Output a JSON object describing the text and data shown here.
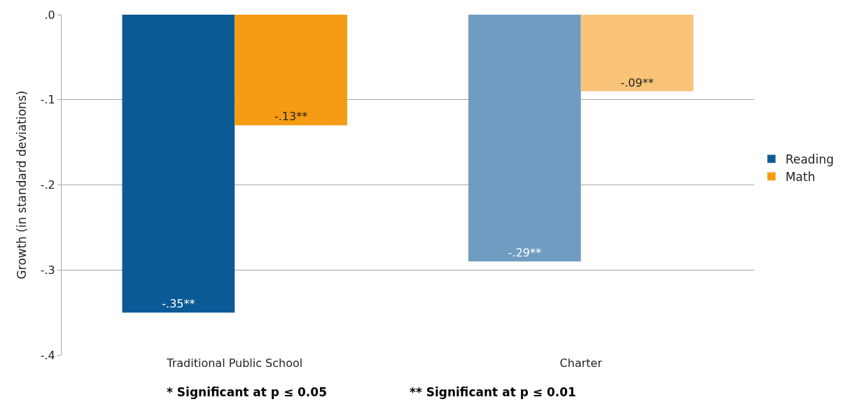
{
  "chart_data": {
    "type": "bar",
    "ylabel": "Growth (in standard deviations)",
    "categories": [
      "Traditional Public School",
      "Charter"
    ],
    "series": [
      {
        "name": "Reading",
        "color": "#0b5a96",
        "colors": [
          "#0b5a96",
          "#6f9cc0"
        ],
        "values": [
          -0.35,
          -0.29
        ],
        "value_labels": [
          "-.35**",
          "-.29**"
        ]
      },
      {
        "name": "Math",
        "color": "#f59c12",
        "colors": [
          "#f59c12",
          "#f9c478"
        ],
        "values": [
          -0.13,
          -0.09
        ],
        "value_labels": [
          "-.13**",
          "-.09**"
        ]
      }
    ],
    "ylim": [
      -0.4,
      0
    ],
    "yticks": [
      {
        "value": 0,
        "label": ".0"
      },
      {
        "value": -0.1,
        "label": "-.1"
      },
      {
        "value": -0.2,
        "label": "-.2"
      },
      {
        "value": -0.3,
        "label": "-.3"
      },
      {
        "value": -0.4,
        "label": "-.4"
      }
    ],
    "grid": "y",
    "legend": "right",
    "annotations": [
      "* Significant at p ≤ 0.05",
      "** Significant at p ≤ 0.01"
    ]
  }
}
